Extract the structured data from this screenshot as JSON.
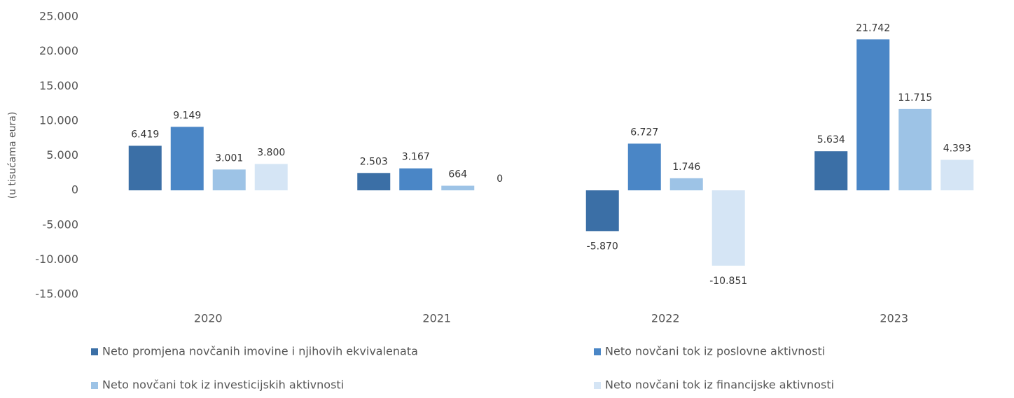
{
  "chart_data": {
    "type": "bar",
    "y_label": "(u tisućama eura)",
    "categories": [
      "2020",
      "2021",
      "2022",
      "2023"
    ],
    "series": [
      {
        "name": "Neto promjena novčanih imovine i njihovih ekvivalenata",
        "color": "#3b6fa6",
        "values": [
          6419,
          2503,
          -5870,
          5634
        ],
        "value_labels": [
          "6.419",
          "2.503",
          "-5.870",
          "5.634"
        ]
      },
      {
        "name": "Neto novčani tok iz poslovne aktivnosti",
        "color": "#4a86c6",
        "values": [
          9149,
          3167,
          6727,
          21742
        ],
        "value_labels": [
          "9.149",
          "3.167",
          "6.727",
          "21.742"
        ]
      },
      {
        "name": "Neto novčani tok iz investicijskih aktivnosti",
        "color": "#9dc3e6",
        "values": [
          3001,
          664,
          1746,
          11715
        ],
        "value_labels": [
          "3.001",
          "664",
          "1.746",
          "11.715"
        ]
      },
      {
        "name": "Neto novčani tok iz financijske aktivnosti",
        "color": "#d5e5f5",
        "values": [
          3800,
          0,
          -10851,
          4393
        ],
        "value_labels": [
          "3.800",
          "0",
          "-10.851",
          "4.393"
        ]
      }
    ],
    "ylim": [
      -15000,
      25000
    ],
    "yticks": [
      {
        "value": 25000,
        "label": "25.000"
      },
      {
        "value": 20000,
        "label": "20.000"
      },
      {
        "value": 15000,
        "label": "15.000"
      },
      {
        "value": 10000,
        "label": "10.000"
      },
      {
        "value": 5000,
        "label": "5.000"
      },
      0,
      {
        "value": -5000,
        "label": "-5.000"
      },
      {
        "value": -10000,
        "label": "-10.000"
      },
      {
        "value": -15000,
        "label": "-15.000"
      }
    ],
    "grid": false
  }
}
